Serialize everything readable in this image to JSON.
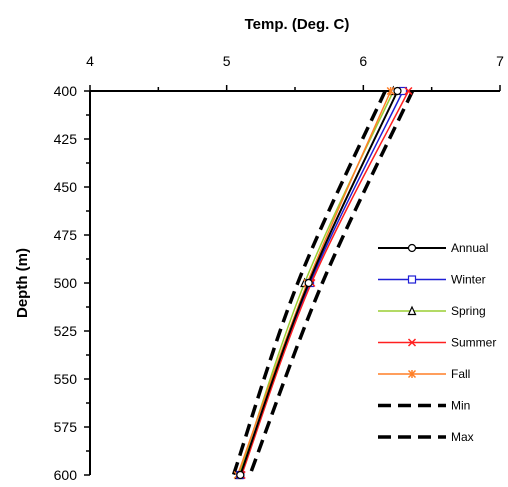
{
  "chart_data": {
    "type": "line",
    "xlabel": "Temp. (Deg. C)",
    "ylabel": "Depth (m)",
    "x_axis_position": "top",
    "y_axis_inverted": true,
    "xlim": [
      4,
      7
    ],
    "ylim": [
      400,
      600
    ],
    "x_ticks": [
      4,
      5,
      6,
      7
    ],
    "y_ticks": [
      400,
      425,
      450,
      475,
      500,
      525,
      550,
      575,
      600
    ],
    "legend_position": "right",
    "grid": false,
    "series": [
      {
        "name": "Annual",
        "color": "#000000",
        "marker": "circle",
        "dash": "solid",
        "points": [
          {
            "depth": 400,
            "temp": 6.25
          },
          {
            "depth": 500,
            "temp": 5.6
          },
          {
            "depth": 600,
            "temp": 5.1
          }
        ]
      },
      {
        "name": "Winter",
        "color": "#1f1fd6",
        "marker": "square",
        "dash": "solid",
        "points": [
          {
            "depth": 400,
            "temp": 6.29
          },
          {
            "depth": 500,
            "temp": 5.61
          },
          {
            "depth": 600,
            "temp": 5.1
          }
        ]
      },
      {
        "name": "Spring",
        "color": "#9acd32",
        "marker": "triangle",
        "dash": "solid",
        "points": [
          {
            "depth": 400,
            "temp": 6.22
          },
          {
            "depth": 500,
            "temp": 5.57
          },
          {
            "depth": 600,
            "temp": 5.09
          }
        ]
      },
      {
        "name": "Summer",
        "color": "#ff2020",
        "marker": "x",
        "dash": "solid",
        "points": [
          {
            "depth": 400,
            "temp": 6.33
          },
          {
            "depth": 500,
            "temp": 5.62
          },
          {
            "depth": 600,
            "temp": 5.11
          }
        ]
      },
      {
        "name": "Fall",
        "color": "#ff7f27",
        "marker": "star",
        "dash": "solid",
        "points": [
          {
            "depth": 400,
            "temp": 6.2
          },
          {
            "depth": 500,
            "temp": 5.59
          },
          {
            "depth": 600,
            "temp": 5.08
          }
        ]
      },
      {
        "name": "Min",
        "color": "#000000",
        "marker": "none",
        "dash": "dashed",
        "points": [
          {
            "depth": 400,
            "temp": 6.16
          },
          {
            "depth": 500,
            "temp": 5.52
          },
          {
            "depth": 600,
            "temp": 5.05
          }
        ]
      },
      {
        "name": "Max",
        "color": "#000000",
        "marker": "none",
        "dash": "dashed",
        "points": [
          {
            "depth": 400,
            "temp": 6.36
          },
          {
            "depth": 500,
            "temp": 5.7
          },
          {
            "depth": 600,
            "temp": 5.17
          }
        ]
      }
    ]
  }
}
